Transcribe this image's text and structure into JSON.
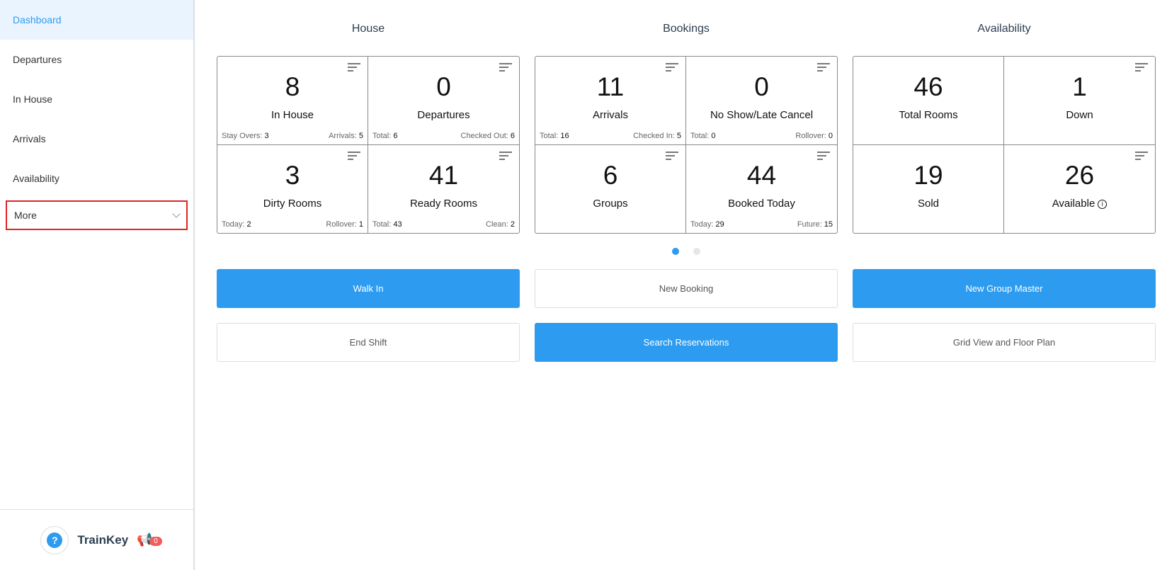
{
  "sidebar": {
    "items": [
      {
        "label": "Dashboard",
        "active": true
      },
      {
        "label": "Departures"
      },
      {
        "label": "In House"
      },
      {
        "label": "Arrivals"
      },
      {
        "label": "Availability"
      }
    ],
    "more": "More",
    "brand": "TrainKey",
    "help": "?",
    "notifications": "0"
  },
  "columns": [
    {
      "title": "House",
      "cells": [
        {
          "value": "8",
          "label": "In House",
          "left_label": "Stay Overs:",
          "left_value": "3",
          "right_label": "Arrivals:",
          "right_value": "5"
        },
        {
          "value": "0",
          "label": "Departures",
          "left_label": "Total:",
          "left_value": "6",
          "right_label": "Checked Out:",
          "right_value": "6"
        },
        {
          "value": "3",
          "label": "Dirty Rooms",
          "left_label": "Today:",
          "left_value": "2",
          "right_label": "Rollover:",
          "right_value": "1"
        },
        {
          "value": "41",
          "label": "Ready Rooms",
          "left_label": "Total:",
          "left_value": "43",
          "right_label": "Clean:",
          "right_value": "2"
        }
      ]
    },
    {
      "title": "Bookings",
      "cells": [
        {
          "value": "11",
          "label": "Arrivals",
          "left_label": "Total:",
          "left_value": "16",
          "right_label": "Checked In:",
          "right_value": "5"
        },
        {
          "value": "0",
          "label": "No Show/Late Cancel",
          "left_label": "Total:",
          "left_value": "0",
          "right_label": "Rollover:",
          "right_value": "0"
        },
        {
          "value": "6",
          "label": "Groups"
        },
        {
          "value": "44",
          "label": "Booked Today",
          "left_label": "Today:",
          "left_value": "29",
          "right_label": "Future:",
          "right_value": "15"
        }
      ]
    },
    {
      "title": "Availability",
      "cells": [
        {
          "value": "46",
          "label": "Total Rooms"
        },
        {
          "value": "1",
          "label": "Down"
        },
        {
          "value": "19",
          "label": "Sold"
        },
        {
          "value": "26",
          "label": "Available"
        }
      ]
    }
  ],
  "buttons": {
    "walk_in": "Walk In",
    "new_booking": "New Booking",
    "new_group_master": "New Group Master",
    "end_shift": "End Shift",
    "search_reservations": "Search Reservations",
    "grid_view": "Grid View and Floor Plan"
  },
  "carousel": {
    "pages": 2,
    "current": 1
  },
  "colors": {
    "accent": "#2d9cf0",
    "badge": "#f25c5c",
    "highlight": "#e02424"
  }
}
